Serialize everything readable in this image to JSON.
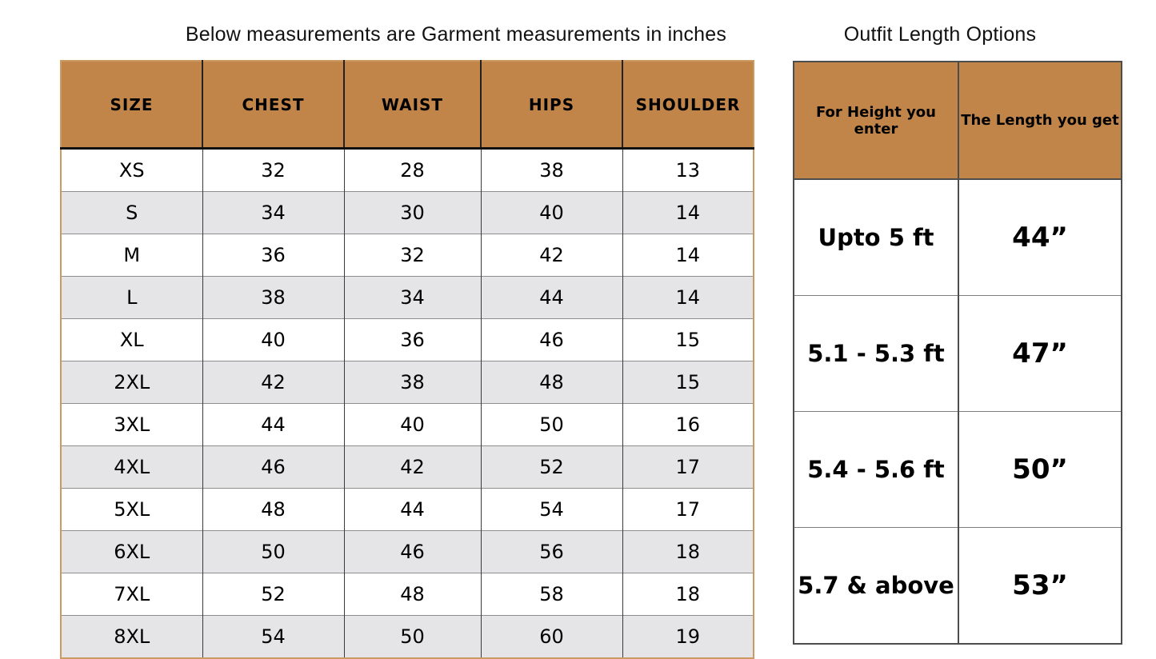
{
  "colors": {
    "header_bg": "#c1854a",
    "tan_border": "#cb9a60",
    "alt_row": "#e5e5e8",
    "dark_line": "#3a3a3a",
    "row_line": "#8e8e8e",
    "header_line": "#111111",
    "frame_line": "#4d4d4d",
    "title": "#111111",
    "text": "#000000"
  },
  "chart_data": [
    {
      "type": "table",
      "title": "Below measurements are Garment measurements in inches",
      "columns": [
        "SIZE",
        "CHEST",
        "WAIST",
        "HIPS",
        "SHOULDER"
      ],
      "rows": [
        [
          "XS",
          "32",
          "28",
          "38",
          "13"
        ],
        [
          "S",
          "34",
          "30",
          "40",
          "14"
        ],
        [
          "M",
          "36",
          "32",
          "42",
          "14"
        ],
        [
          "L",
          "38",
          "34",
          "44",
          "14"
        ],
        [
          "XL",
          "40",
          "36",
          "46",
          "15"
        ],
        [
          "2XL",
          "42",
          "38",
          "48",
          "15"
        ],
        [
          "3XL",
          "44",
          "40",
          "50",
          "16"
        ],
        [
          "4XL",
          "46",
          "42",
          "52",
          "17"
        ],
        [
          "5XL",
          "48",
          "44",
          "54",
          "17"
        ],
        [
          "6XL",
          "50",
          "46",
          "56",
          "18"
        ],
        [
          "7XL",
          "52",
          "48",
          "58",
          "18"
        ],
        [
          "8XL",
          "54",
          "50",
          "60",
          "19"
        ]
      ],
      "units": "inches",
      "layout_hints": {
        "alternating_rows": true,
        "header_position": "top"
      }
    },
    {
      "type": "table",
      "title": "Outfit Length Options",
      "columns": [
        "For Height you enter",
        "The Length you get"
      ],
      "rows": [
        [
          "Upto 5 ft",
          "44”"
        ],
        [
          "5.1 - 5.3 ft",
          "47”"
        ],
        [
          "5.4 - 5.6 ft",
          "50”"
        ],
        [
          "5.7 & above",
          "53”"
        ]
      ],
      "layout_hints": {
        "alternating_rows": false,
        "header_position": "top"
      }
    }
  ]
}
